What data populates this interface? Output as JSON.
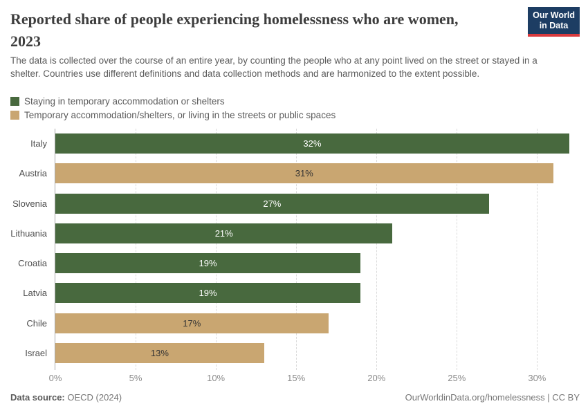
{
  "header": {
    "title": "Reported share of people experiencing homelessness who are women, 2023",
    "subtitle": "The data is collected over the course of an entire year, by counting the people who at any point lived on the street or stayed in a shelter. Countries use different definitions and data collection methods and are harmonized to the extent possible.",
    "logo": {
      "line1": "Our World",
      "line2": "in Data"
    }
  },
  "legend": {
    "items": [
      {
        "key": "shelter",
        "label": "Staying in temporary accommodation or shelters",
        "color": "#48693E",
        "value_label_color": "#ffffff"
      },
      {
        "key": "combined",
        "label": "Temporary accommodation/shelters, or living in the streets or public spaces",
        "color": "#C9A671",
        "value_label_color": "#333333"
      }
    ]
  },
  "chart_data": {
    "type": "bar",
    "orientation": "horizontal",
    "title": "Reported share of people experiencing homelessness who are women, 2023",
    "categories": [
      "Italy",
      "Austria",
      "Slovenia",
      "Lithuania",
      "Croatia",
      "Latvia",
      "Chile",
      "Israel"
    ],
    "values": [
      32,
      31,
      27,
      21,
      19,
      19,
      17,
      13
    ],
    "value_labels": [
      "32%",
      "31%",
      "27%",
      "21%",
      "19%",
      "19%",
      "17%",
      "13%"
    ],
    "series_keys": [
      "shelter",
      "combined",
      "shelter",
      "shelter",
      "shelter",
      "shelter",
      "combined",
      "combined"
    ],
    "unit": "%",
    "xlim": [
      0,
      33
    ],
    "x_ticks": [
      0,
      5,
      10,
      15,
      20,
      25,
      30
    ],
    "x_tick_labels": [
      "0%",
      "5%",
      "10%",
      "15%",
      "20%",
      "25%",
      "30%"
    ],
    "grid": "vertical-dashed",
    "legend_position": "top-left"
  },
  "footer": {
    "source_label": "Data source:",
    "source_value": " OECD (2024)",
    "attribution": "OurWorldinData.org/homelessness | CC BY"
  },
  "colors": {
    "green": "#48693E",
    "tan": "#C9A671",
    "logo_bg": "#1d3d63",
    "logo_stripe": "#d93a3d"
  }
}
